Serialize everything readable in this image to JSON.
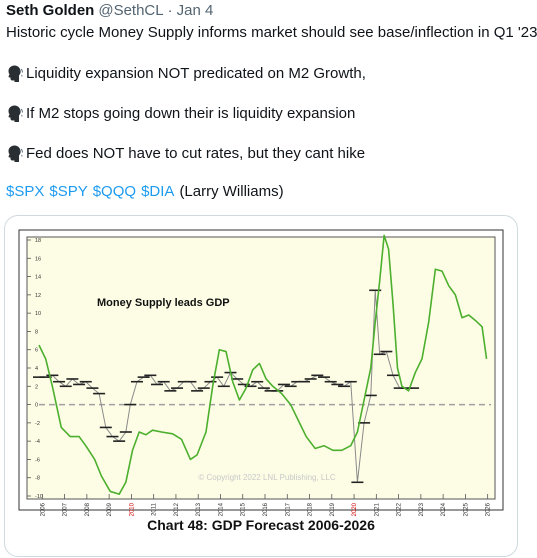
{
  "tweet": {
    "author_name": "Seth Golden",
    "handle": "@SethCL",
    "separator": "·",
    "date": "Jan 4",
    "lines": [
      "Historic cycle Money Supply informs market should see base/inflection in Q1 '23",
      "Liquidity expansion NOT predicated on M2 Growth,",
      "If M2 stops going down their is liquidity expansion",
      "Fed does NOT have to cut rates, but they cant hike"
    ],
    "bullet_icon": "speaking-head-icon",
    "cashtags": [
      "$SPX",
      "$SPY",
      "$QQQ",
      "$DIA"
    ],
    "attribution": "(Larry Williams)"
  },
  "colors": {
    "link": "#1d9bf0",
    "chart_bg": "#fdfde6",
    "green_series": "#4caf2e",
    "black_series": "#222222",
    "grey_connector": "#8a8a8a",
    "zero_line": "#a0a0a0"
  },
  "chart_data": {
    "type": "line",
    "title": "Chart 48: GDP Forecast 2006-2026",
    "annotation": "Money Supply leads GDP",
    "watermark": "© Copyright 2022 LNL Publishing, LLC",
    "ylim": [
      -10,
      18
    ],
    "yticks": [
      18,
      16,
      14,
      12,
      10,
      8,
      6,
      4,
      2,
      0,
      -2,
      -4,
      -6,
      -8,
      -10
    ],
    "ytick_labels": [
      "18",
      "16",
      "14",
      "12",
      "10",
      "8",
      "6",
      "4",
      "2",
      "0",
      "-2",
      "-4",
      "-6",
      "-8",
      "-10"
    ],
    "xlim": [
      2006,
      2026.3
    ],
    "xticks": [
      "2006",
      "2007",
      "2008",
      "2009",
      "2010",
      "2011",
      "2012",
      "2013",
      "2014",
      "2015",
      "2016",
      "2017",
      "2018",
      "2019",
      "2020",
      "2021",
      "2022",
      "2023",
      "2024",
      "2025",
      "2026"
    ],
    "highlight_ticks": [
      "2010",
      "2020"
    ],
    "grid": false,
    "series": [
      {
        "style": "green-line",
        "x": [
          2006.0,
          2006.3,
          2006.6,
          2007.0,
          2007.4,
          2007.8,
          2008.1,
          2008.5,
          2008.8,
          2009.2,
          2009.6,
          2009.9,
          2010.2,
          2010.5,
          2010.8,
          2011.1,
          2011.5,
          2012.0,
          2012.4,
          2012.8,
          2013.1,
          2013.5,
          2013.8,
          2014.1,
          2014.4,
          2014.7,
          2015.0,
          2015.3,
          2015.6,
          2015.9,
          2016.2,
          2016.5,
          2016.9,
          2017.3,
          2017.7,
          2018.0,
          2018.4,
          2018.8,
          2019.2,
          2019.6,
          2020.0,
          2020.3,
          2020.6,
          2020.9,
          2021.1,
          2021.3,
          2021.5,
          2021.7,
          2021.9,
          2022.1,
          2022.3,
          2022.6,
          2022.9,
          2023.2,
          2023.5,
          2023.8,
          2024.1,
          2024.4,
          2024.7,
          2025.0,
          2025.3,
          2025.6,
          2025.9,
          2026.1
        ],
        "y": [
          6.5,
          5.0,
          2.0,
          -2.5,
          -3.5,
          -3.5,
          -4.5,
          -6.0,
          -7.8,
          -9.5,
          -9.8,
          -8.5,
          -5.0,
          -3.0,
          -3.3,
          -2.8,
          -3.0,
          -3.2,
          -3.8,
          -6.0,
          -5.5,
          -3.0,
          2.0,
          6.0,
          5.8,
          2.5,
          0.5,
          1.8,
          3.8,
          4.5,
          2.8,
          2.0,
          1.2,
          0.0,
          -2.0,
          -3.5,
          -4.8,
          -4.5,
          -5.0,
          -5.0,
          -4.5,
          -3.0,
          0.5,
          4.0,
          9.0,
          13.5,
          18.5,
          17.0,
          11.0,
          4.0,
          2.0,
          1.5,
          3.5,
          5.0,
          9.0,
          14.8,
          14.6,
          13.0,
          12.0,
          9.5,
          9.8,
          9.2,
          8.5,
          5.0
        ]
      },
      {
        "style": "black-step-line",
        "x": [
          2006.0,
          2006.3,
          2006.6,
          2006.9,
          2007.2,
          2007.5,
          2007.8,
          2008.1,
          2008.4,
          2008.7,
          2009.0,
          2009.3,
          2009.6,
          2009.9,
          2010.1,
          2010.4,
          2010.7,
          2011.0,
          2011.3,
          2011.6,
          2011.9,
          2012.2,
          2012.5,
          2012.8,
          2013.1,
          2013.4,
          2013.7,
          2014.0,
          2014.3,
          2014.6,
          2014.9,
          2015.2,
          2015.5,
          2015.8,
          2016.1,
          2016.4,
          2016.7,
          2017.0,
          2017.3,
          2017.6,
          2017.9,
          2018.2,
          2018.5,
          2018.8,
          2019.1,
          2019.4,
          2019.7,
          2020.0,
          2020.3,
          2020.6,
          2020.9,
          2021.1,
          2021.3,
          2021.6,
          2021.9,
          2022.2,
          2022.5,
          2022.8
        ],
        "y": [
          3.0,
          3.0,
          3.2,
          2.5,
          2.0,
          2.8,
          2.2,
          2.5,
          1.8,
          1.2,
          -2.5,
          -3.5,
          -4.0,
          -3.0,
          0.0,
          2.5,
          3.0,
          3.2,
          2.2,
          2.5,
          1.5,
          1.8,
          2.5,
          2.5,
          1.5,
          1.8,
          2.5,
          3.0,
          2.0,
          3.5,
          2.8,
          2.2,
          2.0,
          2.5,
          1.8,
          1.5,
          1.5,
          2.2,
          2.0,
          2.5,
          2.5,
          2.8,
          3.2,
          3.0,
          2.5,
          2.2,
          2.0,
          2.5,
          -8.5,
          -2.0,
          1.0,
          12.5,
          5.5,
          5.8,
          3.2,
          1.8,
          1.8,
          1.8
        ]
      }
    ]
  }
}
